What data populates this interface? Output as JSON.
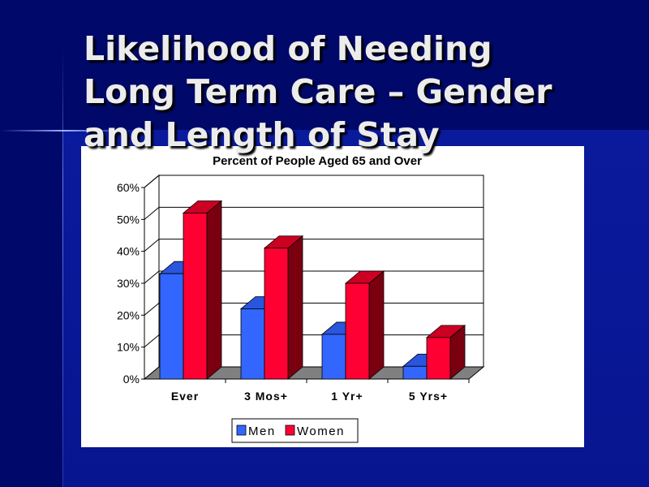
{
  "slide": {
    "title": "Likelihood of Needing\nLong Term Care – Gender\nand Length of Stay"
  },
  "chart_data": {
    "type": "bar",
    "style": "3d-clustered",
    "title": "Percent of People Aged 65 and Over",
    "categories": [
      "Ever",
      "3 Mos+",
      "1 Yr+",
      "5 Yrs+"
    ],
    "series": [
      {
        "name": "Men",
        "values": [
          33,
          22,
          14,
          4
        ],
        "color": "#3366ff"
      },
      {
        "name": "Women",
        "values": [
          52,
          41,
          30,
          13
        ],
        "color": "#ff0033"
      }
    ],
    "yticks": [
      "0%",
      "10%",
      "20%",
      "30%",
      "40%",
      "50%",
      "60%"
    ],
    "ylim": [
      0,
      60
    ],
    "y_unit": "%",
    "grid": true,
    "legend": "bottom"
  }
}
